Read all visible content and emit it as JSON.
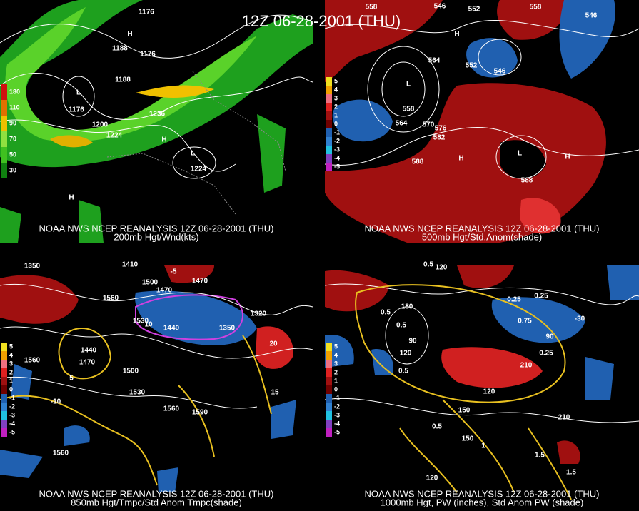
{
  "header": {
    "title": "12Z 06-28-2001 (THU)"
  },
  "panels": [
    {
      "caption": [
        "NOAA NWS NCEP REANALYSIS 12Z 06-28-2001 (THU)",
        "200mb Hgt/Wnd(kts)"
      ],
      "colorbar": [
        "180",
        "110",
        "90",
        "70",
        "50",
        "30"
      ],
      "labels": [
        "1176",
        "1188",
        "1176",
        "1188",
        "1176",
        "1236",
        "1200",
        "1224",
        "1224",
        "L",
        "H",
        "H",
        "H",
        "L"
      ]
    },
    {
      "caption": [
        "NOAA NWS NCEP REANALYSIS 12Z 06-28-2001 (THU)",
        "500mb Hgt/Std.Anom(shade)"
      ],
      "colorbar": [
        "5",
        "4",
        "3",
        "2",
        "1",
        "0",
        "-1",
        "-2",
        "-3",
        "-4",
        "-5"
      ],
      "labels": [
        "558",
        "546",
        "552",
        "558",
        "546",
        "564",
        "552",
        "546",
        "558",
        "564",
        "570",
        "576",
        "582",
        "588",
        "588",
        "L",
        "H",
        "L",
        "H",
        "H"
      ]
    },
    {
      "caption": [
        "NOAA NWS NCEP REANALYSIS 12Z 06-28-2001 (THU)",
        "850mb Hgt/Tmpc/Std Anom Tmpc(shade)"
      ],
      "colorbar": [
        "5",
        "4",
        "3",
        "2",
        "1",
        "0",
        "-1",
        "-2",
        "-3",
        "-4",
        "-5"
      ],
      "labels": [
        "1350",
        "1410",
        "1500",
        "1470",
        "1470",
        "1560",
        "1530",
        "1440",
        "1350",
        "1320",
        "1440",
        "1470",
        "1560",
        "1500",
        "1530",
        "1560",
        "1590",
        "1560",
        "5",
        "-10",
        "20",
        "15",
        "-5",
        "10"
      ]
    },
    {
      "caption": [
        "NOAA NWS NCEP REANALYSIS 12Z 06-28-2001 (THU)",
        "1000mb Hgt, PW (inches), Std Anom PW (shade)"
      ],
      "colorbar": [
        "5",
        "4",
        "3",
        "2",
        "1",
        "0",
        "-1",
        "-2",
        "-3",
        "-4",
        "-5"
      ],
      "labels": [
        "0.5",
        "120",
        "0.5",
        "180",
        "90",
        "120",
        "0.5",
        "0.5",
        "150",
        "120",
        "150",
        "1",
        "120",
        "1.5",
        "210",
        "1.5",
        "0.25",
        "0.25",
        "0.75",
        "90",
        "210",
        "-30",
        "0.5",
        "0.25"
      ]
    }
  ]
}
